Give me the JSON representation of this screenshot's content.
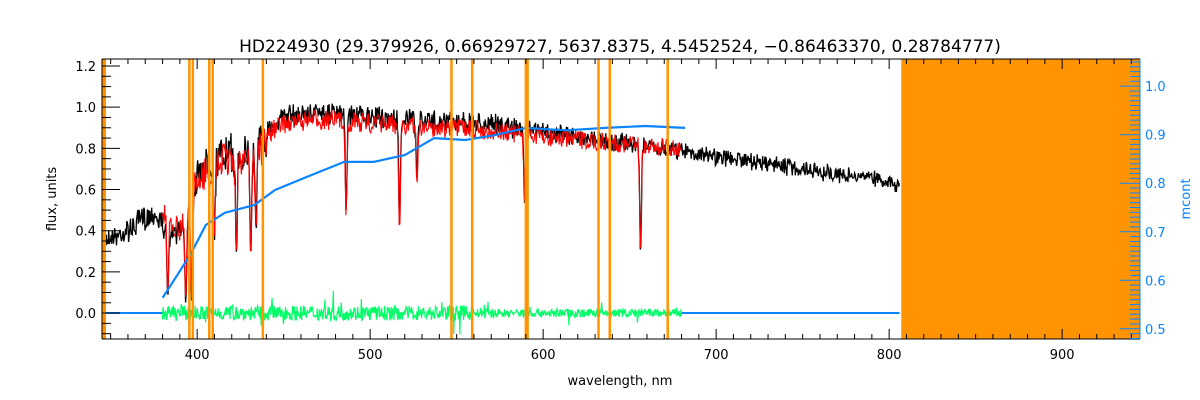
{
  "chart_data": {
    "type": "line",
    "title": "HD224930   (29.379926, 0.66929727, 5637.8375, 4.5452524, −0.86463370, 0.28784777)",
    "xlabel": "wavelength, nm",
    "ylabel": "flux, units",
    "y2label": "mcont",
    "xlim": [
      345,
      945
    ],
    "ylim": [
      -0.126,
      1.234
    ],
    "y2lim": [
      0.479,
      1.056
    ],
    "xticks": [
      400,
      500,
      600,
      700,
      800,
      900
    ],
    "xtick_labels": [
      "400",
      "500",
      "600",
      "700",
      "800",
      "900"
    ],
    "yticks": [
      0.0,
      0.2,
      0.4,
      0.6,
      0.8,
      1.0,
      1.2
    ],
    "ytick_labels": [
      "0.0",
      "0.2",
      "0.4",
      "0.6",
      "0.8",
      "1.0",
      "1.2"
    ],
    "y2ticks": [
      0.5,
      0.6,
      0.7,
      0.8,
      0.9,
      1.0
    ],
    "y2tick_labels": [
      "0.5",
      "0.6",
      "0.7",
      "0.8",
      "0.9",
      "1.0"
    ],
    "grid": false,
    "colors": {
      "observed": "#000000",
      "model": "#ff0000",
      "residual": "#00ff66",
      "continuum": "#0a84ff",
      "mask": "#ff9400",
      "axis2": "#0a84ff"
    },
    "series": [
      {
        "name": "observed",
        "axis": "left",
        "x": [
          345,
          360,
          375,
          385,
          395,
          400,
          410,
          430,
          450,
          470,
          500,
          530,
          560,
          600,
          650,
          700,
          750,
          800,
          806
        ],
        "y": [
          0.4,
          0.45,
          0.55,
          0.42,
          0.5,
          0.75,
          0.85,
          0.88,
          1.0,
          1.02,
          1.0,
          0.98,
          0.97,
          0.92,
          0.86,
          0.8,
          0.73,
          0.67,
          0.65
        ],
        "absorption_lines": [
          {
            "x": 383,
            "depth": 0.2
          },
          {
            "x": 393.4,
            "depth": 0.1
          },
          {
            "x": 396.8,
            "depth": 0.12
          },
          {
            "x": 410,
            "depth": 0.5
          },
          {
            "x": 422.7,
            "depth": 0.35
          },
          {
            "x": 431,
            "depth": 0.38
          },
          {
            "x": 434,
            "depth": 0.5
          },
          {
            "x": 486.1,
            "depth": 0.52
          },
          {
            "x": 517,
            "depth": 0.45
          },
          {
            "x": 527,
            "depth": 0.7
          },
          {
            "x": 589.3,
            "depth": 0.63
          },
          {
            "x": 656.3,
            "depth": 0.36
          }
        ]
      },
      {
        "name": "model",
        "axis": "left",
        "x": [
          380,
          390,
          400,
          410,
          430,
          450,
          470,
          500,
          530,
          560,
          600,
          640,
          680
        ],
        "y": [
          0.55,
          0.45,
          0.72,
          0.82,
          0.86,
          0.97,
          0.99,
          0.97,
          0.95,
          0.94,
          0.9,
          0.87,
          0.84
        ]
      },
      {
        "name": "residual",
        "axis": "left",
        "x": [
          380,
          680
        ],
        "y": [
          0.0,
          0.0
        ],
        "scatter": 0.03
      },
      {
        "name": "continuum",
        "axis": "right",
        "x": [
          380,
          396,
          405,
          416,
          433,
          445,
          462,
          485,
          502,
          520,
          537,
          555,
          572,
          590,
          613,
          636,
          659,
          682
        ],
        "y": [
          0.564,
          0.652,
          0.714,
          0.739,
          0.755,
          0.786,
          0.811,
          0.844,
          0.844,
          0.858,
          0.893,
          0.889,
          0.899,
          0.914,
          0.909,
          0.914,
          0.918,
          0.914
        ]
      },
      {
        "name": "baseline",
        "axis": "left",
        "x": [
          345,
          380,
          680,
          806
        ],
        "y": [
          0.0,
          0.0,
          0.0,
          0.0
        ]
      }
    ],
    "mask_lines": [
      395.5,
      397.5,
      407,
      409,
      438,
      547,
      559,
      590,
      591,
      632,
      638.5,
      672
    ],
    "mask_band": [
      807,
      945
    ]
  }
}
